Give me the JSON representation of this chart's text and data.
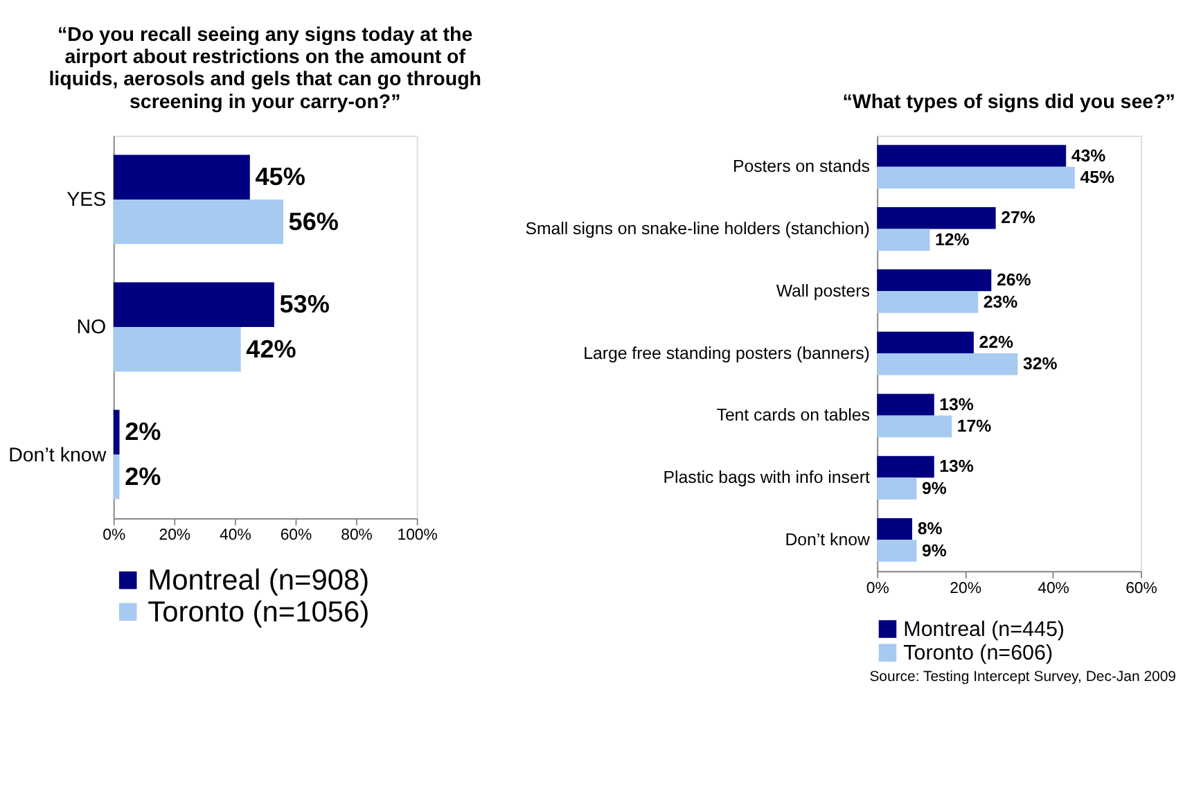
{
  "chart_data": [
    {
      "type": "bar",
      "orientation": "horizontal",
      "title": "“Do you recall seeing any signs today at the airport about restrictions on the amount of liquids, aerosols and gels that can go through screening in your carry-on?”",
      "categories": [
        "YES",
        "NO",
        "Don’t know"
      ],
      "series": [
        {
          "name": "Montreal (n=908)",
          "color": "#000080",
          "values": [
            45,
            53,
            2
          ],
          "value_labels": [
            "45%",
            "53%",
            "2%"
          ]
        },
        {
          "name": "Toronto (n=1056)",
          "color": "#a6caf0",
          "values": [
            56,
            42,
            2
          ],
          "value_labels": [
            "56%",
            "42%",
            "2%"
          ]
        }
      ],
      "xlim": [
        0,
        100
      ],
      "xticks": [
        {
          "value": 0,
          "label": "0%"
        },
        {
          "value": 20,
          "label": "20%"
        },
        {
          "value": 40,
          "label": "40%"
        },
        {
          "value": 60,
          "label": "60%"
        },
        {
          "value": 80,
          "label": "80%"
        },
        {
          "value": 100,
          "label": "100%"
        }
      ],
      "grid": false,
      "legend": "bottom"
    },
    {
      "type": "bar",
      "orientation": "horizontal",
      "title": "“What types of signs did you see?”",
      "categories": [
        "Posters on stands",
        "Small signs on snake-line holders (stanchion)",
        "Wall posters",
        "Large free standing posters (banners)",
        "Tent cards on tables",
        "Plastic bags with info insert",
        "Don’t know"
      ],
      "series": [
        {
          "name": "Montreal (n=445)",
          "color": "#000080",
          "values": [
            43,
            27,
            26,
            22,
            13,
            13,
            8
          ],
          "value_labels": [
            "43%",
            "27%",
            "26%",
            "22%",
            "13%",
            "13%",
            "8%"
          ]
        },
        {
          "name": "Toronto (n=606)",
          "color": "#a6caf0",
          "values": [
            45,
            12,
            23,
            32,
            17,
            9,
            9
          ],
          "value_labels": [
            "45%",
            "12%",
            "23%",
            "32%",
            "17%",
            "9%",
            "9%"
          ]
        }
      ],
      "xlim": [
        0,
        60
      ],
      "xticks": [
        {
          "value": 0,
          "label": "0%"
        },
        {
          "value": 20,
          "label": "20%"
        },
        {
          "value": 40,
          "label": "40%"
        },
        {
          "value": 60,
          "label": "60%"
        }
      ],
      "grid": false,
      "legend": "bottom",
      "annotations": [
        "Source: Testing Intercept Survey, Dec-Jan 2009"
      ]
    }
  ]
}
